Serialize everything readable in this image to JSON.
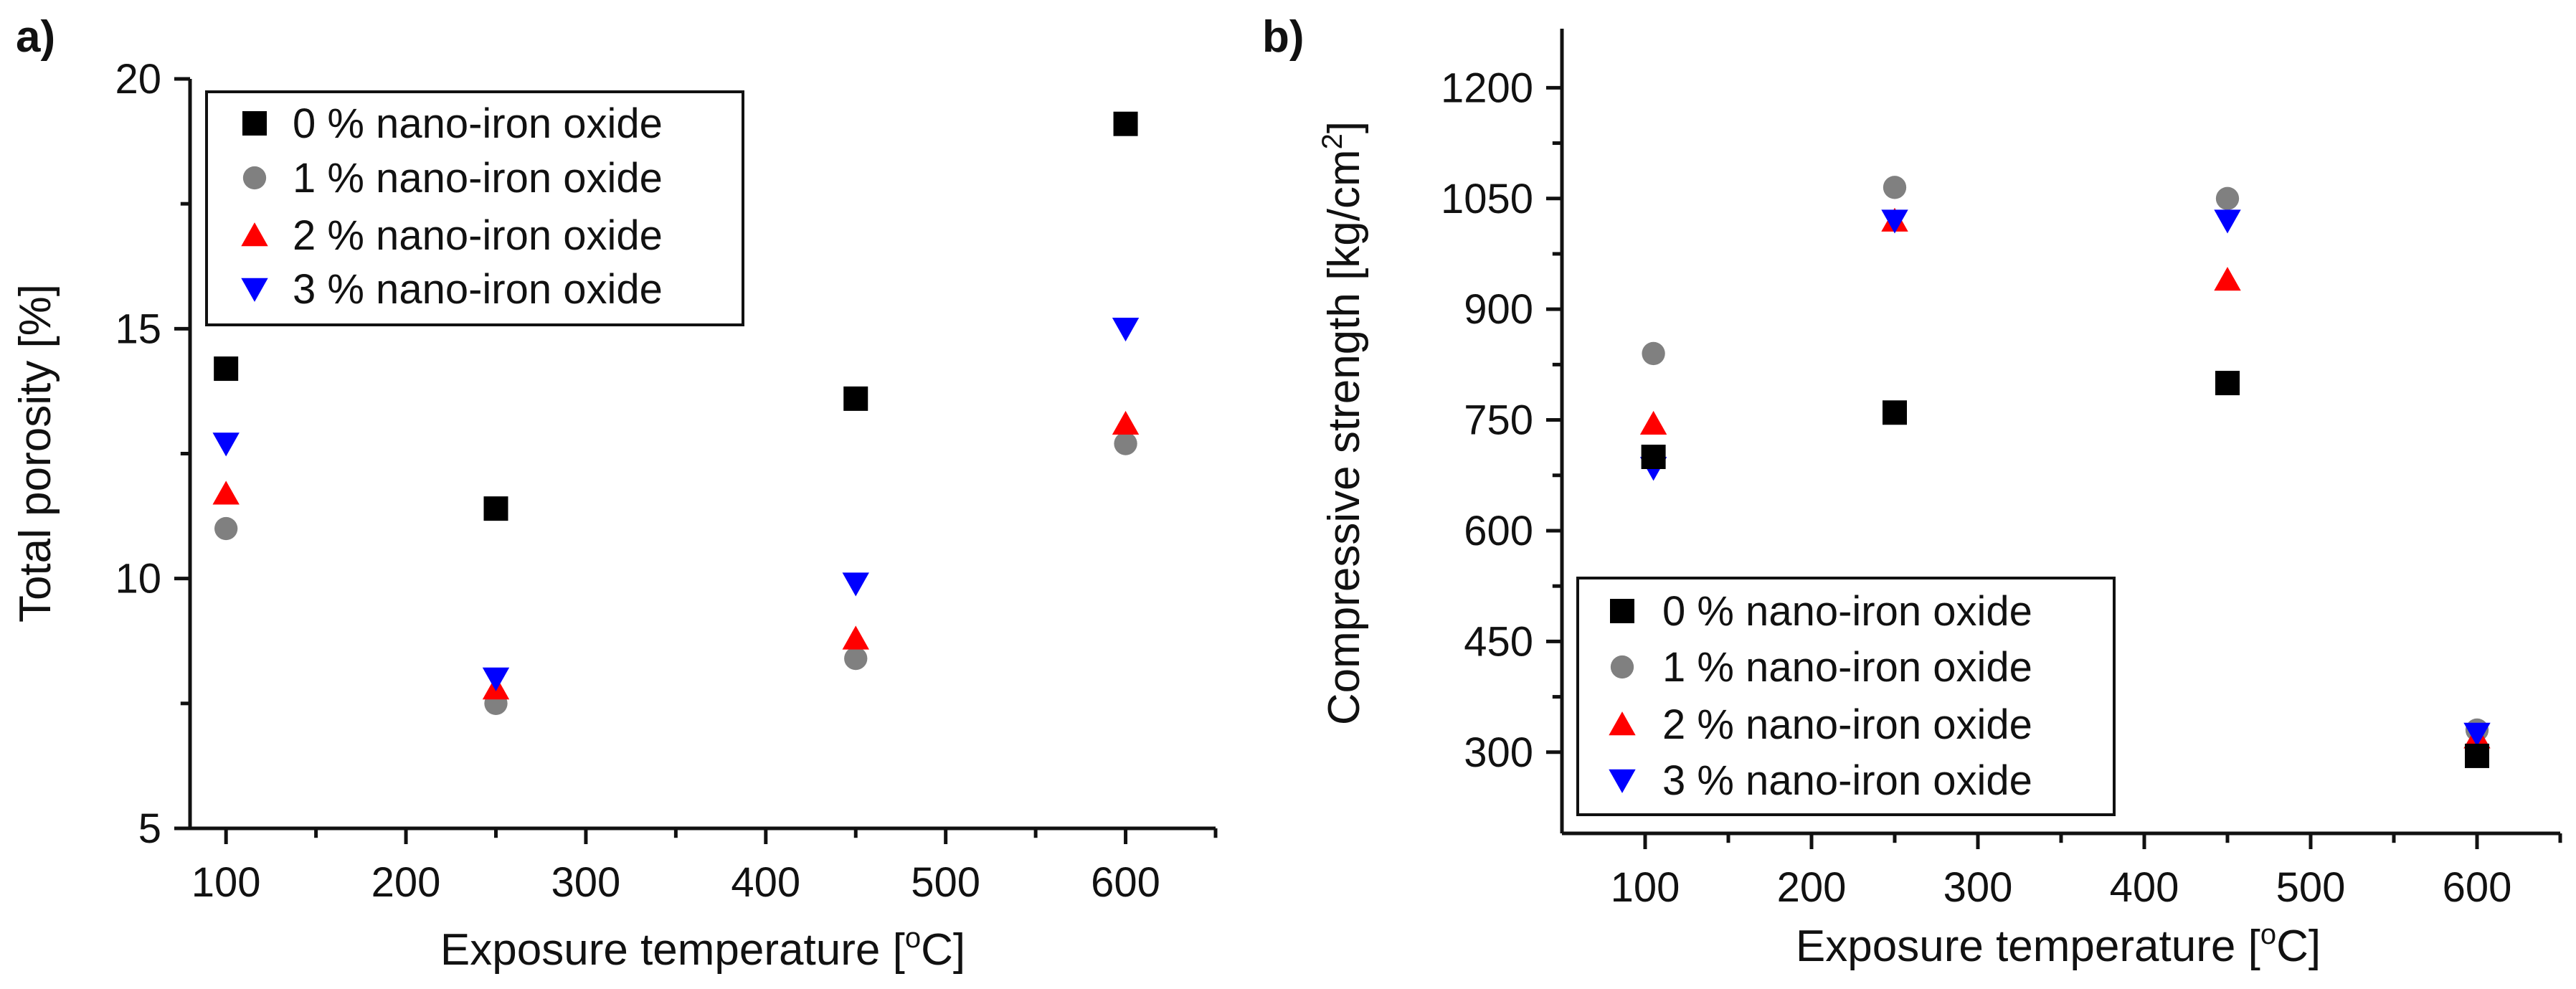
{
  "chart_data": [
    {
      "type": "scatter",
      "panel_label": "a)",
      "xlabel": "Exposure temperature [",
      "xlabel_sup": "o",
      "xlabel_end": "C]",
      "ylabel": "Total porosity [%]",
      "xlim": [
        80,
        650
      ],
      "ylim": [
        5,
        20
      ],
      "xticks": [
        100,
        200,
        300,
        400,
        500,
        600
      ],
      "xtick_labels": [
        "100",
        "200",
        "300",
        "400",
        "500",
        "600"
      ],
      "yticks": [
        5,
        10,
        15,
        20
      ],
      "ytick_labels": [
        "5",
        "10",
        "15",
        "20"
      ],
      "legend_position": "top-left",
      "series": [
        {
          "name": "0 % nano-iron oxide",
          "marker": "square",
          "color": "#000000",
          "x": [
            100,
            250,
            450,
            600
          ],
          "y": [
            14.2,
            11.4,
            13.6,
            19.1
          ]
        },
        {
          "name": "1 % nano-iron oxide",
          "marker": "circle",
          "color": "#808080",
          "x": [
            100,
            250,
            450,
            600
          ],
          "y": [
            11.0,
            7.5,
            8.4,
            12.7
          ]
        },
        {
          "name": "2 % nano-iron oxide",
          "marker": "triangle-up",
          "color": "#ff0000",
          "x": [
            100,
            250,
            450,
            600
          ],
          "y": [
            11.7,
            7.8,
            8.8,
            13.1
          ]
        },
        {
          "name": "3 % nano-iron oxide",
          "marker": "triangle-down",
          "color": "#0000ff",
          "x": [
            100,
            250,
            450,
            600
          ],
          "y": [
            12.7,
            8.0,
            9.9,
            15.0
          ]
        }
      ]
    },
    {
      "type": "scatter",
      "panel_label": "b)",
      "xlabel": "Exposure temperature [",
      "xlabel_sup": "o",
      "xlabel_end": "C]",
      "ylabel": "Compressive strength [kg/cm",
      "ylabel_sup": "2",
      "ylabel_end": "]",
      "xlim": [
        50,
        650
      ],
      "ylim": [
        190,
        1280
      ],
      "xticks": [
        100,
        200,
        300,
        400,
        500,
        600
      ],
      "xtick_labels": [
        "100",
        "200",
        "300",
        "400",
        "500",
        "600"
      ],
      "yticks": [
        300,
        450,
        600,
        750,
        900,
        1050,
        1200
      ],
      "ytick_labels": [
        "300",
        "450",
        "600",
        "750",
        "900",
        "1050",
        "1200"
      ],
      "legend_position": "bottom-left",
      "series": [
        {
          "name": "0 % nano-iron oxide",
          "marker": "square",
          "color": "#000000",
          "x": [
            105,
            250,
            450,
            600
          ],
          "y": [
            700,
            760,
            800,
            295
          ]
        },
        {
          "name": "1 % nano-iron oxide",
          "marker": "circle",
          "color": "#808080",
          "x": [
            105,
            250,
            450,
            600
          ],
          "y": [
            840,
            1065,
            1050,
            330
          ]
        },
        {
          "name": "2 % nano-iron oxide",
          "marker": "triangle-up",
          "color": "#ff0000",
          "x": [
            105,
            250,
            450,
            600
          ],
          "y": [
            745,
            1020,
            940,
            320
          ]
        },
        {
          "name": "3 % nano-iron oxide",
          "marker": "triangle-down",
          "color": "#0000ff",
          "x": [
            105,
            250,
            450,
            600
          ],
          "y": [
            685,
            1020,
            1020,
            325
          ]
        }
      ]
    }
  ]
}
